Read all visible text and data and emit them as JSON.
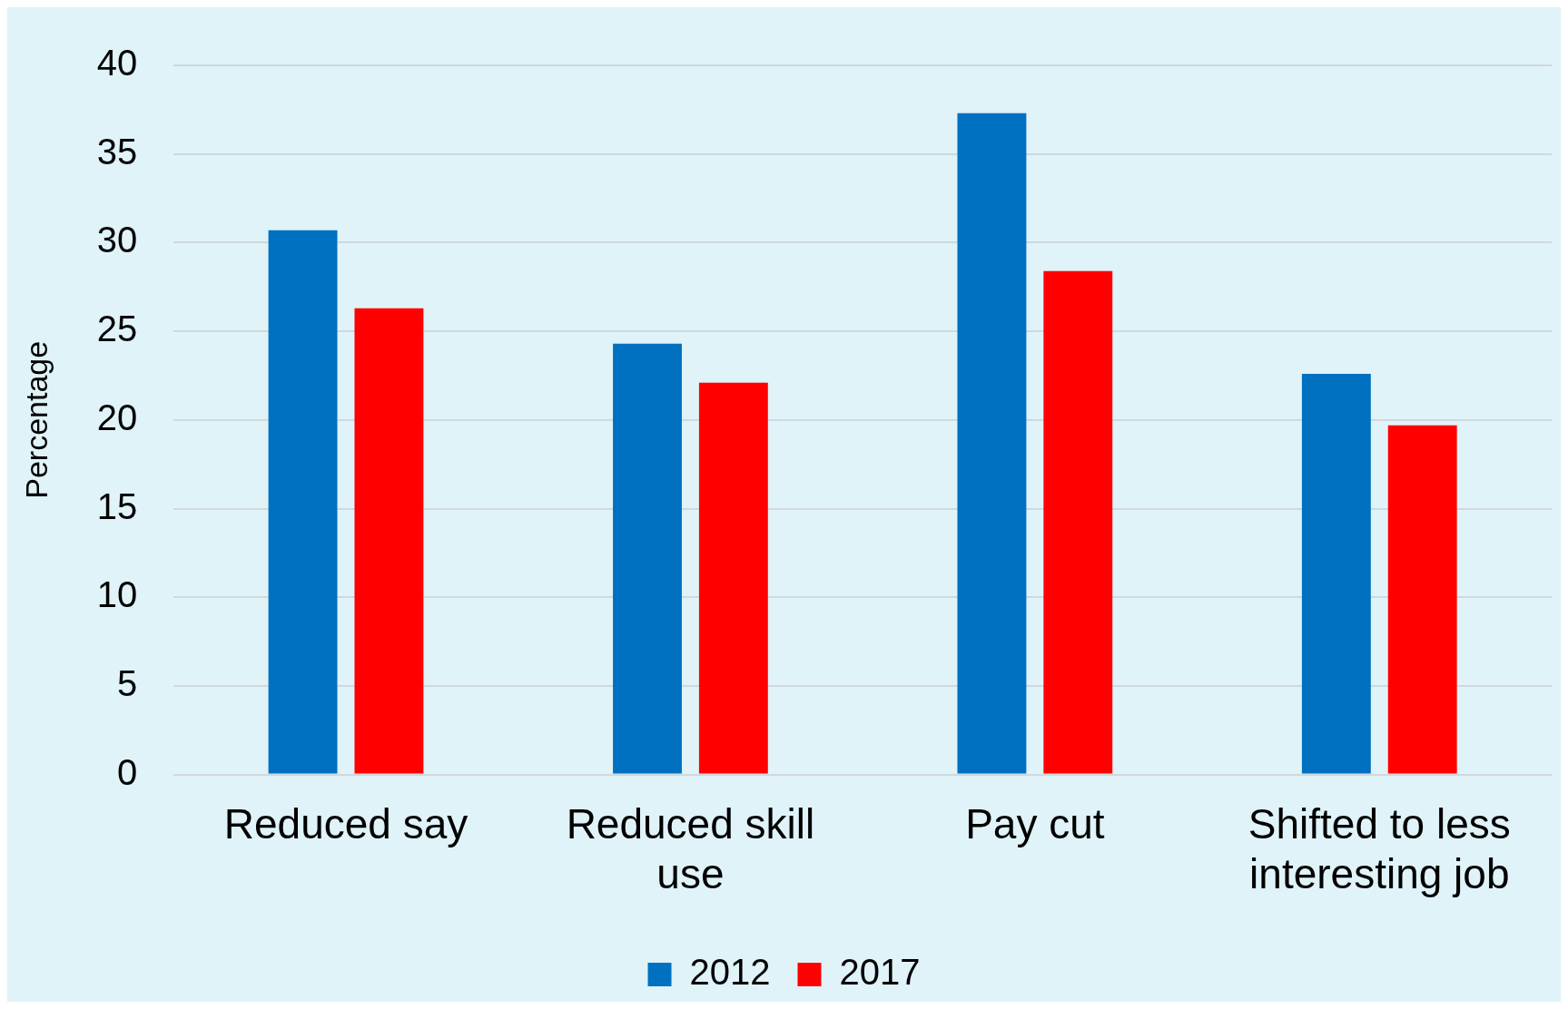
{
  "chart_data": {
    "type": "bar",
    "ylabel": "Percentage",
    "categories": [
      "Reduced say",
      "Reduced skill use",
      "Pay cut",
      "Shifted to less interesting job"
    ],
    "series": [
      {
        "name": "2012",
        "color": "#0070c0",
        "values": [
          30.7,
          24.3,
          37.3,
          22.6
        ]
      },
      {
        "name": "2017",
        "color": "#ff0000",
        "values": [
          26.3,
          22.1,
          28.4,
          19.7
        ]
      }
    ],
    "ylim": [
      0,
      40
    ],
    "yticks": [
      0,
      5,
      10,
      15,
      20,
      25,
      30,
      35,
      40
    ],
    "grid": "y",
    "legend": "bottom"
  }
}
